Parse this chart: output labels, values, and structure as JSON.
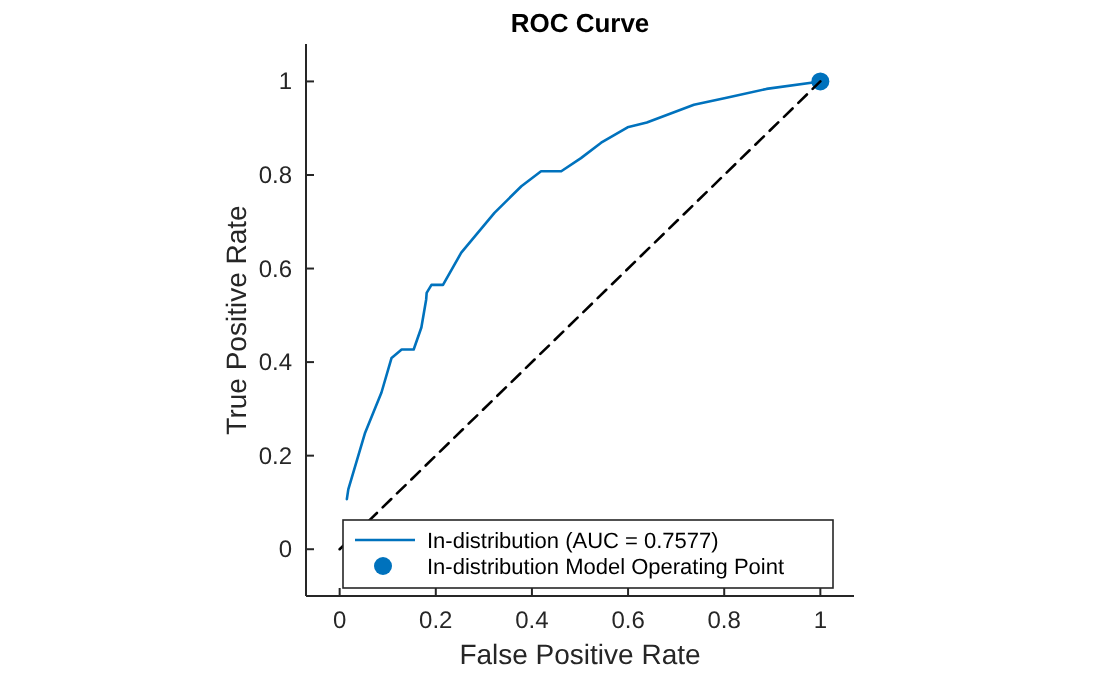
{
  "chart_data": {
    "type": "line",
    "title": "ROC Curve",
    "xlabel": "False Positive Rate",
    "ylabel": "True Positive Rate",
    "xlim": [
      -0.07,
      1.07
    ],
    "ylim": [
      -0.1,
      1.08
    ],
    "xticks": [
      0,
      0.2,
      0.4,
      0.6,
      0.8,
      1
    ],
    "yticks": [
      0,
      0.2,
      0.4,
      0.6,
      0.8,
      1
    ],
    "legend": "bottom",
    "grid": false,
    "series": [
      {
        "name": "In-distribution (AUC = 0.7577)",
        "color": "#0072bd",
        "line_style": "solid",
        "x": [
          0.015,
          0.018,
          0.053,
          0.087,
          0.108,
          0.129,
          0.154,
          0.17,
          0.18,
          0.181,
          0.191,
          0.215,
          0.253,
          0.322,
          0.378,
          0.419,
          0.461,
          0.502,
          0.544,
          0.599,
          0.639,
          0.737,
          0.805,
          0.888,
          1
        ],
        "values": [
          0.107,
          0.128,
          0.249,
          0.335,
          0.409,
          0.427,
          0.427,
          0.474,
          0.534,
          0.548,
          0.565,
          0.565,
          0.634,
          0.719,
          0.776,
          0.808,
          0.808,
          0.836,
          0.869,
          0.902,
          0.912,
          0.95,
          0.965,
          0.984,
          1
        ]
      },
      {
        "name": "In-distribution Model Operating Point",
        "type": "scatter",
        "marker": "circle",
        "color": "#0072bd",
        "x": [
          1
        ],
        "values": [
          1
        ]
      },
      {
        "type": "line",
        "color": "#000000",
        "line_style": "dashed",
        "x": [
          0,
          1
        ],
        "values": [
          0,
          1
        ]
      }
    ]
  }
}
